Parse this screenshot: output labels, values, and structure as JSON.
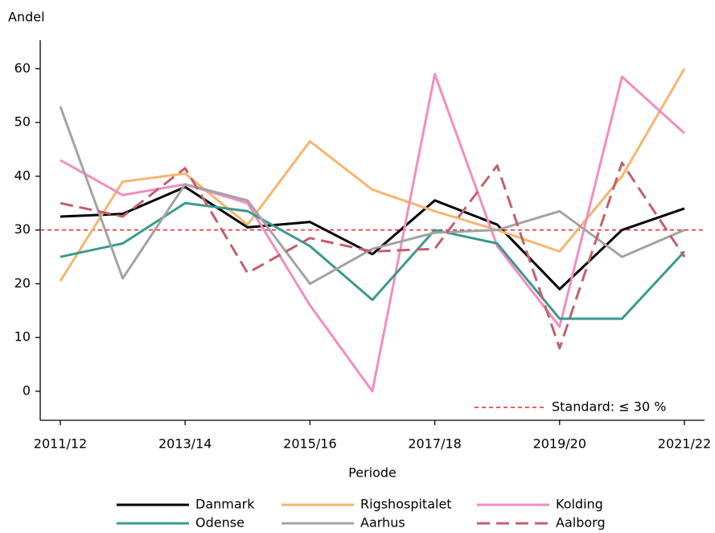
{
  "chart_data": {
    "type": "line",
    "y_label": "Andel",
    "x_label": "Periode",
    "categories": [
      "2011/12",
      null,
      "2013/14",
      null,
      "2015/16",
      null,
      "2017/18",
      null,
      "2019/20",
      null,
      "2021/22"
    ],
    "ylim": [
      -5.4,
      65.3
    ],
    "yticks": [
      0,
      10,
      20,
      30,
      40,
      50,
      60
    ],
    "series": [
      {
        "name": "Danmark",
        "color": "#000000",
        "style": "solid",
        "values": [
          32.5,
          33,
          38,
          30.5,
          31.5,
          25.5,
          35.5,
          31,
          19,
          30,
          34
        ]
      },
      {
        "name": "Rigshospitalet",
        "color": "#f6b56e",
        "style": "solid",
        "values": [
          20.5,
          39,
          40.5,
          31,
          46.5,
          37.5,
          33.5,
          30,
          26,
          40,
          60
        ]
      },
      {
        "name": "Kolding",
        "color": "#f18dc2",
        "style": "solid",
        "values": [
          43,
          36.5,
          38.5,
          35,
          16,
          0,
          59,
          27,
          12,
          58.5,
          48
        ]
      },
      {
        "name": "Odense",
        "color": "#3b9a8c",
        "style": "solid",
        "values": [
          25,
          27.5,
          35,
          33.5,
          27,
          17,
          30,
          27.5,
          13.5,
          13.5,
          26
        ]
      },
      {
        "name": "Aarhus",
        "color": "#a3a3a3",
        "style": "solid",
        "values": [
          53,
          21,
          38.5,
          35.5,
          20,
          26.5,
          29.5,
          30,
          33.5,
          25,
          30
        ]
      },
      {
        "name": "Aalborg",
        "color": "#c1606c",
        "style": "dashed",
        "values": [
          35,
          32.5,
          41.5,
          22,
          28.5,
          26,
          26.5,
          42,
          8,
          42.5,
          25
        ]
      }
    ],
    "reference": {
      "value": 30,
      "label": "Standard: ≤ 30 %",
      "color": "#ee2222"
    }
  }
}
